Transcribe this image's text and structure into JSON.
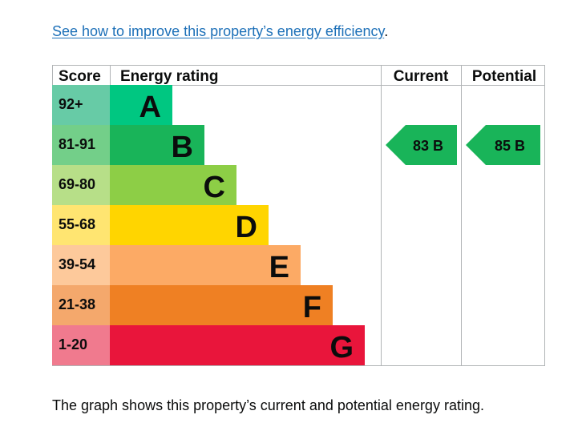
{
  "link": {
    "text": "See how to improve this property’s energy efficiency",
    "suffix": "."
  },
  "caption": "The graph shows this property’s current and potential energy rating.",
  "chart_data": {
    "type": "bar",
    "headers": {
      "score": "Score",
      "rating": "Energy rating",
      "current": "Current",
      "potential": "Potential"
    },
    "bands": [
      {
        "letter": "A",
        "range": "92+",
        "color": "#00c781",
        "range_color": "#67cba6"
      },
      {
        "letter": "B",
        "range": "81-91",
        "color": "#19b459",
        "range_color": "#73cf89"
      },
      {
        "letter": "C",
        "range": "69-80",
        "color": "#8dce46",
        "range_color": "#b7df88"
      },
      {
        "letter": "D",
        "range": "55-68",
        "color": "#ffd500",
        "range_color": "#ffe571"
      },
      {
        "letter": "E",
        "range": "39-54",
        "color": "#fcaa65",
        "range_color": "#fdc99b"
      },
      {
        "letter": "F",
        "range": "21-38",
        "color": "#ef8023",
        "range_color": "#f4a86c"
      },
      {
        "letter": "G",
        "range": "1-20",
        "color": "#e9153b",
        "range_color": "#f07a8e"
      }
    ],
    "current": {
      "score": 83,
      "band": "B",
      "color": "#19b459"
    },
    "potential": {
      "score": 85,
      "band": "B",
      "color": "#19b459"
    }
  }
}
